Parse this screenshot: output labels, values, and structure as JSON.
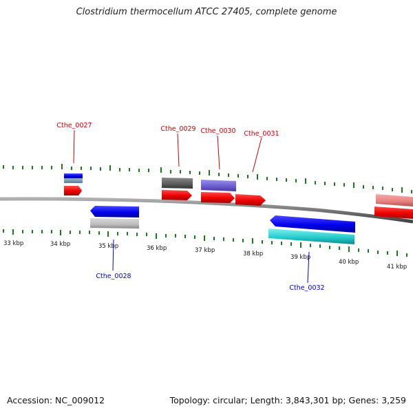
{
  "title": "Clostridium thermocellum ATCC 27405, complete genome",
  "footer": {
    "accession": "Accession: NC_009012",
    "summary": "Topology: circular; Length: 3,843,301 bp; Genes: 3,259"
  },
  "ruler": {
    "labels": [
      "33 kbp",
      "34 kbp",
      "35 kbp",
      "36 kbp",
      "37 kbp",
      "38 kbp",
      "39 kbp",
      "40 kbp",
      "41 kbp"
    ]
  },
  "genes": {
    "cthe_0027": {
      "label": "Cthe_0027",
      "strand": "forward"
    },
    "cthe_0028": {
      "label": "Cthe_0028",
      "strand": "reverse"
    },
    "cthe_0029": {
      "label": "Cthe_0029",
      "strand": "forward"
    },
    "cthe_0030": {
      "label": "Cthe_0030",
      "strand": "forward"
    },
    "cthe_0031": {
      "label": "Cthe_0031",
      "strand": "forward"
    },
    "cthe_0032": {
      "label": "Cthe_0032",
      "strand": "reverse"
    }
  },
  "colors": {
    "forward_gene": "#ff0000",
    "forward_label": "#cc0000",
    "reverse_gene": "#0000ee",
    "reverse_label": "#0000cc",
    "tick": "#1a7a1a",
    "backbone": "#777777"
  }
}
